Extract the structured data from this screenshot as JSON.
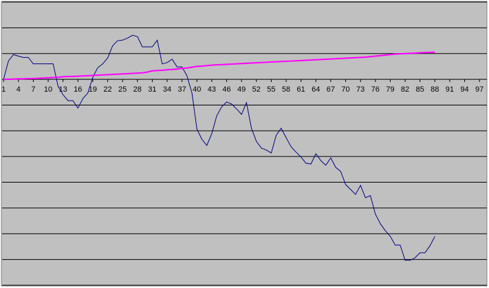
{
  "chart_data": {
    "type": "line",
    "x": [
      1,
      2,
      3,
      4,
      5,
      6,
      7,
      8,
      9,
      10,
      11,
      12,
      13,
      14,
      15,
      16,
      17,
      18,
      19,
      20,
      21,
      22,
      23,
      24,
      25,
      26,
      27,
      28,
      29,
      30,
      31,
      32,
      33,
      34,
      35,
      36,
      37,
      38,
      39,
      40,
      41,
      42,
      43,
      44,
      45,
      46,
      47,
      48,
      49,
      50,
      51,
      52,
      53,
      54,
      55,
      56,
      57,
      58,
      59,
      60,
      61,
      62,
      63,
      64,
      65,
      66,
      67,
      68,
      69,
      70,
      71,
      72,
      73,
      74,
      75,
      76,
      77,
      78,
      79,
      80,
      81,
      82,
      83,
      84,
      85,
      86,
      87,
      88
    ],
    "series": [
      {
        "color": "#000080",
        "values": [
          0,
          0.72,
          0.96,
          0.9,
          0.85,
          0.85,
          0.6,
          0.6,
          0.6,
          0.6,
          0.6,
          -0.27,
          -0.6,
          -0.83,
          -0.83,
          -1.12,
          -0.75,
          -0.53,
          0.08,
          0.45,
          0.6,
          0.83,
          1.3,
          1.5,
          1.52,
          1.6,
          1.71,
          1.66,
          1.26,
          1.26,
          1.26,
          1.52,
          0.6,
          0.65,
          0.78,
          0.48,
          0.48,
          0.13,
          -0.53,
          -1.93,
          -2.33,
          -2.57,
          -2.11,
          -1.42,
          -1.07,
          -0.88,
          -0.96,
          -1.15,
          -1.36,
          -0.91,
          -1.9,
          -2.41,
          -2.67,
          -2.75,
          -2.86,
          -2.17,
          -1.9,
          -2.27,
          -2.62,
          -2.83,
          -3.02,
          -3.26,
          -3.29,
          -2.89,
          -3.16,
          -3.34,
          -3.05,
          -3.42,
          -3.58,
          -4.09,
          -4.28,
          -4.47,
          -4.12,
          -4.6,
          -4.52,
          -5.24,
          -5.61,
          -5.88,
          -6.1,
          -6.44,
          -6.44,
          -7.03,
          -7.03,
          -6.93,
          -6.74,
          -6.74,
          -6.47,
          -6.1
        ]
      },
      {
        "color": "#ff00ff",
        "values": [
          0,
          0,
          0.01,
          0.02,
          0.02,
          0.03,
          0.03,
          0.04,
          0.05,
          0.06,
          0.07,
          0.08,
          0.1,
          0.11,
          0.11,
          0.12,
          0.13,
          0.14,
          0.15,
          0.16,
          0.17,
          0.18,
          0.19,
          0.2,
          0.21,
          0.22,
          0.23,
          0.24,
          0.25,
          0.28,
          0.33,
          0.34,
          0.35,
          0.37,
          0.38,
          0.4,
          0.42,
          0.44,
          0.47,
          0.5,
          0.51,
          0.53,
          0.55,
          0.56,
          0.57,
          0.58,
          0.59,
          0.6,
          0.61,
          0.62,
          0.63,
          0.64,
          0.65,
          0.66,
          0.67,
          0.68,
          0.69,
          0.7,
          0.71,
          0.72,
          0.73,
          0.74,
          0.75,
          0.76,
          0.77,
          0.78,
          0.79,
          0.8,
          0.81,
          0.82,
          0.83,
          0.84,
          0.85,
          0.86,
          0.88,
          0.9,
          0.92,
          0.94,
          0.96,
          0.98,
          0.99,
          1.0,
          1.01,
          1.02,
          1.03,
          1.04,
          1.05,
          1.05
        ]
      }
    ],
    "xlim": [
      0.7,
      98.5
    ],
    "xticks": [
      1,
      4,
      7,
      10,
      13,
      16,
      19,
      22,
      25,
      28,
      31,
      34,
      37,
      40,
      43,
      46,
      49,
      52,
      55,
      58,
      61,
      64,
      67,
      70,
      73,
      76,
      79,
      82,
      85,
      88,
      91,
      94,
      97
    ],
    "ylim": [
      -8,
      3
    ],
    "yticks": [
      -8,
      -7,
      -6,
      -5,
      -4,
      -3,
      -2,
      -1,
      0,
      1,
      2,
      3
    ],
    "grid": true
  }
}
